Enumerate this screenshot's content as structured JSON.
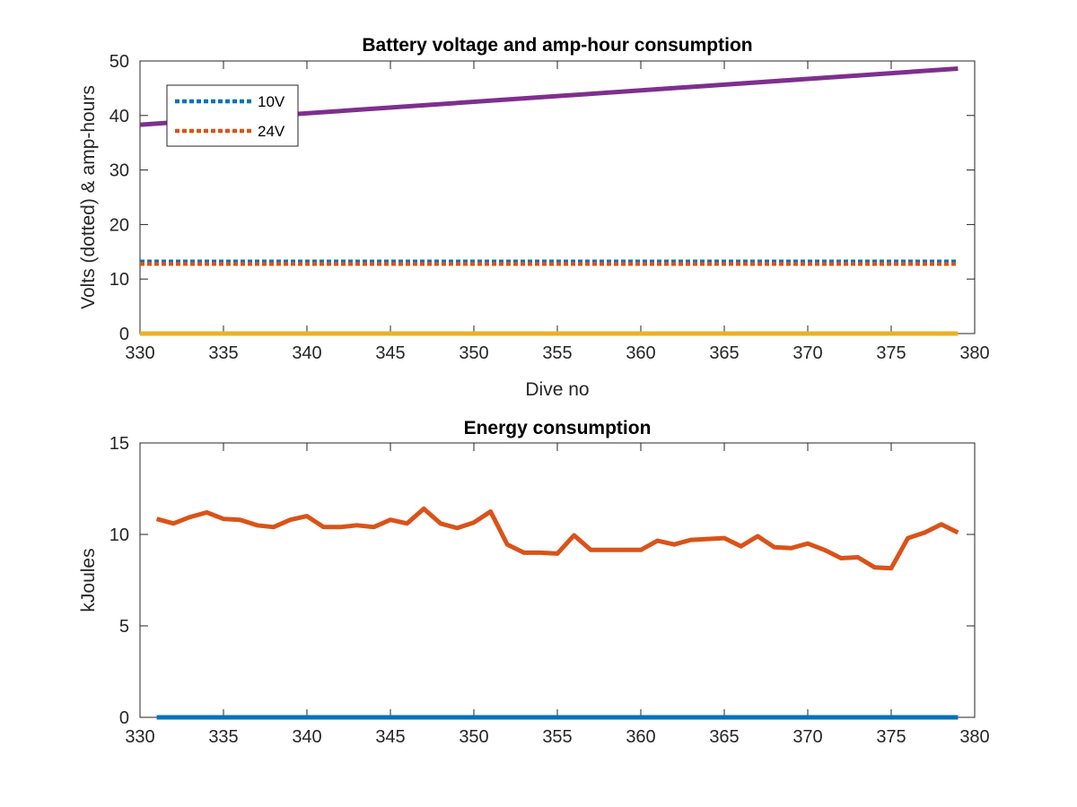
{
  "chart_data": [
    {
      "type": "line",
      "title": "Battery voltage and amp-hour consumption",
      "xlabel": "Dive no",
      "ylabel": "Volts (dotted) & amp-hours",
      "xlim": [
        330,
        380
      ],
      "ylim": [
        0,
        50
      ],
      "xticks": [
        330,
        335,
        340,
        345,
        350,
        355,
        360,
        365,
        370,
        375,
        380
      ],
      "yticks": [
        0,
        10,
        20,
        30,
        40,
        50
      ],
      "grid": false,
      "legend": {
        "placement": "top-left",
        "entries": [
          "10V",
          "24V"
        ]
      },
      "series": [
        {
          "name": "10V",
          "style": "dotted",
          "color": "#0072BD",
          "x": [
            330,
            379
          ],
          "y": [
            13.2,
            13.2
          ]
        },
        {
          "name": "24V",
          "style": "dotted",
          "color": "#D95319",
          "x": [
            330,
            379
          ],
          "y": [
            12.8,
            12.8
          ]
        },
        {
          "style": "solid",
          "color": "#EDB120",
          "x": [
            330,
            379
          ],
          "y": [
            0,
            0
          ]
        },
        {
          "style": "solid",
          "color": "#7E2F8E",
          "x": [
            330,
            379
          ],
          "y": [
            38.3,
            48.6
          ]
        }
      ]
    },
    {
      "type": "line",
      "title": "Energy consumption",
      "xlabel": "",
      "ylabel": "kJoules",
      "xlim": [
        330,
        380
      ],
      "ylim": [
        0,
        15
      ],
      "xticks": [
        330,
        335,
        340,
        345,
        350,
        355,
        360,
        365,
        370,
        375,
        380
      ],
      "yticks": [
        0,
        5,
        10,
        15
      ],
      "grid": false,
      "series": [
        {
          "style": "solid",
          "color": "#0072BD",
          "x": [
            331,
            379
          ],
          "y": [
            0,
            0
          ]
        },
        {
          "style": "solid",
          "color": "#D95319",
          "x": [
            331,
            332,
            333,
            334,
            335,
            336,
            337,
            338,
            339,
            340,
            341,
            342,
            343,
            344,
            345,
            346,
            347,
            348,
            349,
            350,
            351,
            352,
            353,
            354,
            355,
            356,
            357,
            358,
            359,
            360,
            361,
            362,
            363,
            364,
            365,
            366,
            367,
            368,
            369,
            370,
            371,
            372,
            373,
            374,
            375,
            376,
            377,
            378,
            379
          ],
          "y": [
            10.85,
            10.6,
            10.95,
            11.2,
            10.85,
            10.8,
            10.5,
            10.4,
            10.8,
            11.0,
            10.4,
            10.4,
            10.5,
            10.4,
            10.8,
            10.6,
            11.4,
            10.6,
            10.35,
            10.65,
            11.25,
            9.45,
            9.0,
            9.0,
            8.95,
            9.95,
            9.15,
            9.15,
            9.15,
            9.15,
            9.65,
            9.45,
            9.7,
            9.75,
            9.8,
            9.35,
            9.9,
            9.3,
            9.25,
            9.5,
            9.15,
            8.7,
            8.75,
            8.2,
            8.15,
            9.8,
            10.1,
            10.55,
            10.1
          ]
        }
      ]
    }
  ]
}
